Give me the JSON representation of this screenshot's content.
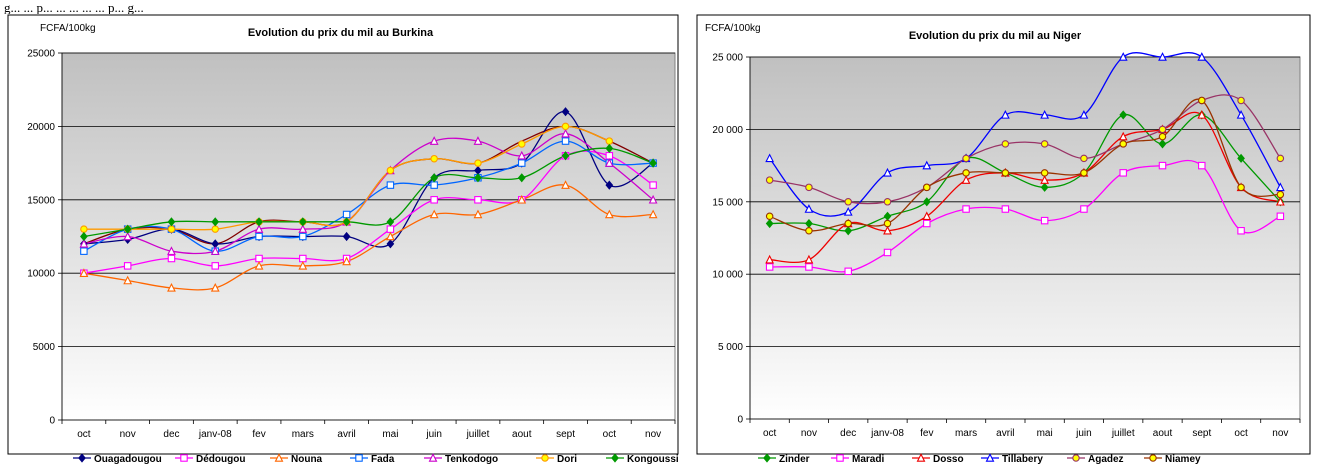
{
  "caption": "g... ... p... ... ... ... ... p... g...",
  "chart_data": [
    {
      "type": "line",
      "title": "Evolution du prix du mil au Burkina",
      "unit_label": "FCFA/100kg",
      "xlabel": "",
      "ylabel": "",
      "categories": [
        "oct",
        "nov",
        "dec",
        "janv-08",
        "fev",
        "mars",
        "avril",
        "mai",
        "juin",
        "juillet",
        "aout",
        "sept",
        "oct",
        "nov"
      ],
      "ylim": [
        0,
        25000
      ],
      "yticks": [
        0,
        5000,
        10000,
        15000,
        20000,
        25000
      ],
      "ytick_labels": [
        "0",
        "5000",
        "10000",
        "15000",
        "20000",
        "25000"
      ],
      "grid": true,
      "legend_position": "bottom",
      "plot_background": "#d4d4d4",
      "series": [
        {
          "name": "Ouagadougou",
          "color": "#000080",
          "marker": "diamond",
          "values": [
            12000,
            12300,
            13000,
            12000,
            12500,
            12500,
            12500,
            12000,
            16500,
            17000,
            17500,
            21000,
            16000,
            17500
          ]
        },
        {
          "name": "Dédougou",
          "color": "#ff00ff",
          "marker": "square",
          "values": [
            10000,
            10500,
            11000,
            10500,
            11000,
            11000,
            11000,
            13000,
            15000,
            15000,
            15000,
            18000,
            18000,
            16000
          ]
        },
        {
          "name": "Nouna",
          "color": "#ff6600",
          "marker": "triangle",
          "values": [
            10000,
            9500,
            9000,
            9000,
            10500,
            10500,
            10800,
            12500,
            14000,
            14000,
            15000,
            16000,
            14000,
            14000
          ]
        },
        {
          "name": "Fada",
          "color": "#0066ff",
          "marker": "square",
          "values": [
            11500,
            13000,
            13000,
            11500,
            12500,
            12500,
            14000,
            16000,
            16000,
            16500,
            17500,
            19000,
            17500,
            17500
          ]
        },
        {
          "name": "Tenkodogo",
          "color": "#cc00cc",
          "marker": "triangle",
          "values": [
            12000,
            12500,
            11500,
            11500,
            13000,
            13000,
            13500,
            17000,
            19000,
            19000,
            18000,
            19500,
            17500,
            15000
          ]
        },
        {
          "name": "Dori",
          "color": "#ff9900",
          "marker": "circle",
          "values": [
            13000,
            13000,
            13000,
            13000,
            13500,
            13500,
            13500,
            17000,
            17800,
            17500,
            18800,
            20000,
            19000,
            null
          ]
        },
        {
          "name": "Kongoussi",
          "color": "#009900",
          "marker": "diamond",
          "values": [
            12500,
            13000,
            13500,
            13500,
            13500,
            13500,
            13500,
            13500,
            16500,
            16500,
            16500,
            18000,
            18500,
            17500
          ]
        }
      ],
      "extra_lines": [
        {
          "color": "#800000",
          "values": [
            12000,
            13000,
            13000,
            12000,
            13500,
            13500,
            13500,
            17000,
            17800,
            17500,
            19000,
            20000,
            19000,
            17500
          ]
        }
      ]
    },
    {
      "type": "line",
      "title": "Evolution du prix du mil au Niger",
      "unit_label": "FCFA/100kg",
      "xlabel": "",
      "ylabel": "",
      "categories": [
        "oct",
        "nov",
        "dec",
        "janv-08",
        "fev",
        "mars",
        "avril",
        "mai",
        "juin",
        "juillet",
        "aout",
        "sept",
        "oct",
        "nov"
      ],
      "ylim": [
        0,
        25000
      ],
      "yticks": [
        0,
        5000,
        10000,
        15000,
        20000,
        25000
      ],
      "ytick_labels": [
        "0",
        "5 000",
        "10 000",
        "15 000",
        "20 000",
        "25 000"
      ],
      "grid": true,
      "legend_position": "bottom",
      "plot_background": "#d4d4d4",
      "series": [
        {
          "name": "Zinder",
          "color": "#009900",
          "marker": "diamond",
          "values": [
            13500,
            13500,
            13000,
            14000,
            15000,
            18000,
            17000,
            16000,
            17000,
            21000,
            19000,
            21000,
            18000,
            15000
          ]
        },
        {
          "name": "Maradi",
          "color": "#ff00ff",
          "marker": "square",
          "values": [
            10500,
            10500,
            10200,
            11500,
            13500,
            14500,
            14500,
            13700,
            14500,
            17000,
            17500,
            17500,
            13000,
            14000
          ]
        },
        {
          "name": "Dosso",
          "color": "#ee0000",
          "marker": "triangle",
          "values": [
            11000,
            11000,
            13500,
            13000,
            14000,
            16500,
            17000,
            16500,
            17000,
            19500,
            20000,
            21000,
            16000,
            15000
          ]
        },
        {
          "name": "Tillabery",
          "color": "#0000ff",
          "marker": "triangle",
          "values": [
            18000,
            14500,
            14300,
            17000,
            17500,
            18000,
            21000,
            21000,
            21000,
            25000,
            25000,
            25000,
            21000,
            16000
          ]
        },
        {
          "name": "Agadez",
          "color": "#993366",
          "marker": "circle",
          "values": [
            16500,
            16000,
            15000,
            15000,
            16000,
            18000,
            19000,
            19000,
            18000,
            19000,
            20000,
            22000,
            22000,
            18000
          ]
        },
        {
          "name": "Niamey",
          "color": "#993300",
          "marker": "circle",
          "values": [
            14000,
            13000,
            13500,
            13500,
            16000,
            17000,
            17000,
            17000,
            17000,
            19000,
            19500,
            22000,
            16000,
            15500
          ]
        }
      ]
    }
  ]
}
